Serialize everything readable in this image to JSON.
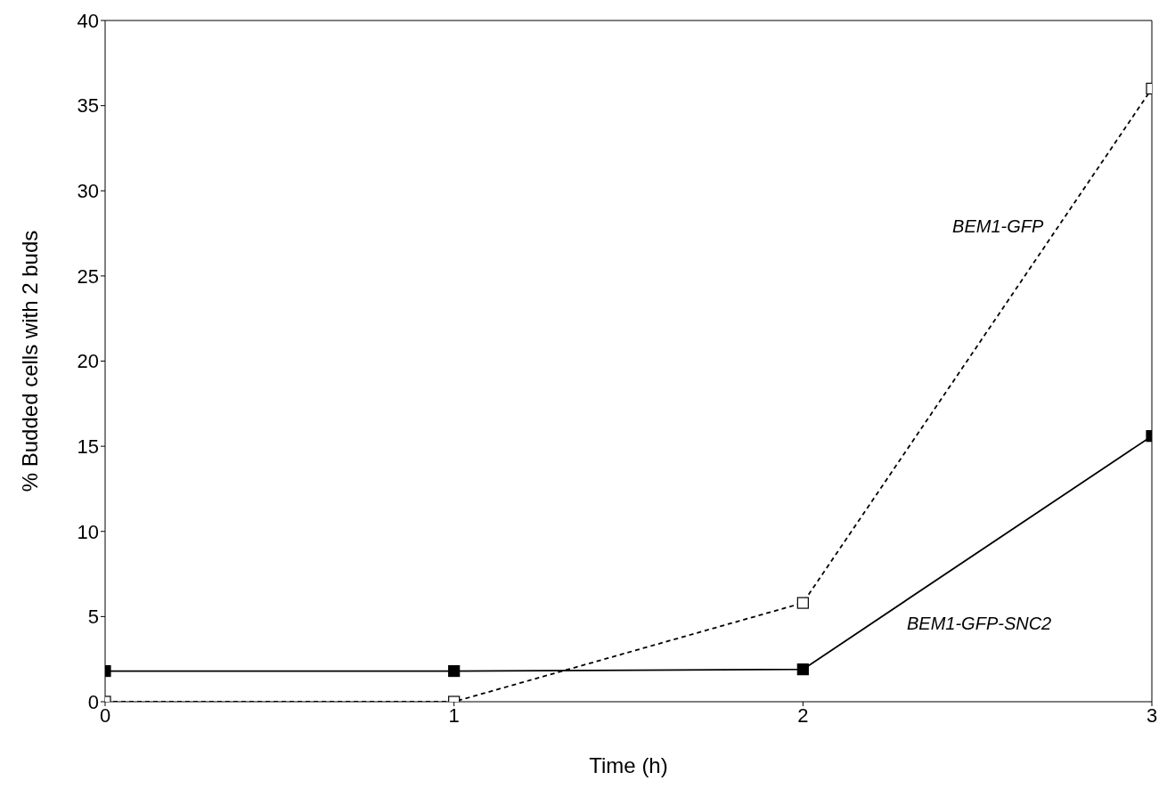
{
  "chart_data": {
    "type": "line",
    "xlabel": "Time (h)",
    "ylabel": "% Budded cells with 2 buds",
    "x": [
      0,
      1,
      2,
      3
    ],
    "series": [
      {
        "name": "BEM1-GFP",
        "color": "#000000",
        "values": [
          0,
          0,
          5.8,
          36
        ],
        "line_style": "dashed"
      },
      {
        "name": "BEM1-GFP-SNC2",
        "color": "#000000",
        "values": [
          1.8,
          1.8,
          1.9,
          15.6
        ],
        "line_style": "solid"
      }
    ],
    "xlim": [
      0,
      3
    ],
    "xticks": [
      0,
      1,
      2,
      3
    ],
    "ylim": [
      0,
      40
    ],
    "yticks": [
      0,
      5,
      10,
      15,
      20,
      25,
      30,
      35,
      40
    ],
    "grid": false,
    "legend": false,
    "marker": "square"
  }
}
